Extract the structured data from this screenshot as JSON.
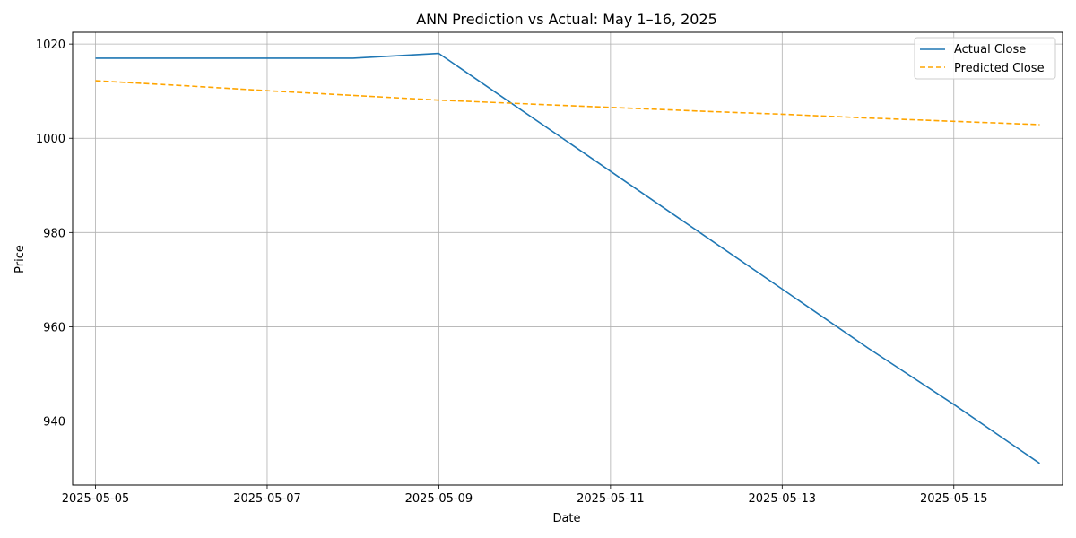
{
  "chart_data": {
    "type": "line",
    "title": "ANN Prediction vs Actual: May 1–16, 2025",
    "xlabel": "Date",
    "ylabel": "Price",
    "xlim": [
      "2025-05-04T17:36",
      "2025-05-16T06:24"
    ],
    "ylim": [
      926.4,
      1022.5
    ],
    "x_ticks": [
      "2025-05-05",
      "2025-05-07",
      "2025-05-09",
      "2025-05-11",
      "2025-05-13",
      "2025-05-15"
    ],
    "y_ticks": [
      940,
      960,
      980,
      1000,
      1020
    ],
    "grid": true,
    "legend_position": "top-right",
    "series": [
      {
        "name": "Actual Close",
        "color": "#1f77b4",
        "style": "solid",
        "points": [
          {
            "x": "2025-05-05",
            "y": 1017
          },
          {
            "x": "2025-05-06",
            "y": 1017
          },
          {
            "x": "2025-05-07",
            "y": 1017
          },
          {
            "x": "2025-05-08",
            "y": 1017
          },
          {
            "x": "2025-05-09",
            "y": 1018
          },
          {
            "x": "2025-05-12",
            "y": 980.5
          },
          {
            "x": "2025-05-13",
            "y": 968
          },
          {
            "x": "2025-05-14",
            "y": 955.5
          },
          {
            "x": "2025-05-15",
            "y": 943.5
          },
          {
            "x": "2025-05-16",
            "y": 931
          }
        ]
      },
      {
        "name": "Predicted Close",
        "color": "#ffa500",
        "style": "dashed",
        "points": [
          {
            "x": "2025-05-05",
            "y": 1012.2
          },
          {
            "x": "2025-05-06",
            "y": 1011.2
          },
          {
            "x": "2025-05-07",
            "y": 1010.1
          },
          {
            "x": "2025-05-08",
            "y": 1009.1
          },
          {
            "x": "2025-05-09",
            "y": 1008.1
          },
          {
            "x": "2025-05-12",
            "y": 1005.8
          },
          {
            "x": "2025-05-13",
            "y": 1005.1
          },
          {
            "x": "2025-05-14",
            "y": 1004.3
          },
          {
            "x": "2025-05-15",
            "y": 1003.6
          },
          {
            "x": "2025-05-16",
            "y": 1002.9
          }
        ]
      }
    ]
  }
}
